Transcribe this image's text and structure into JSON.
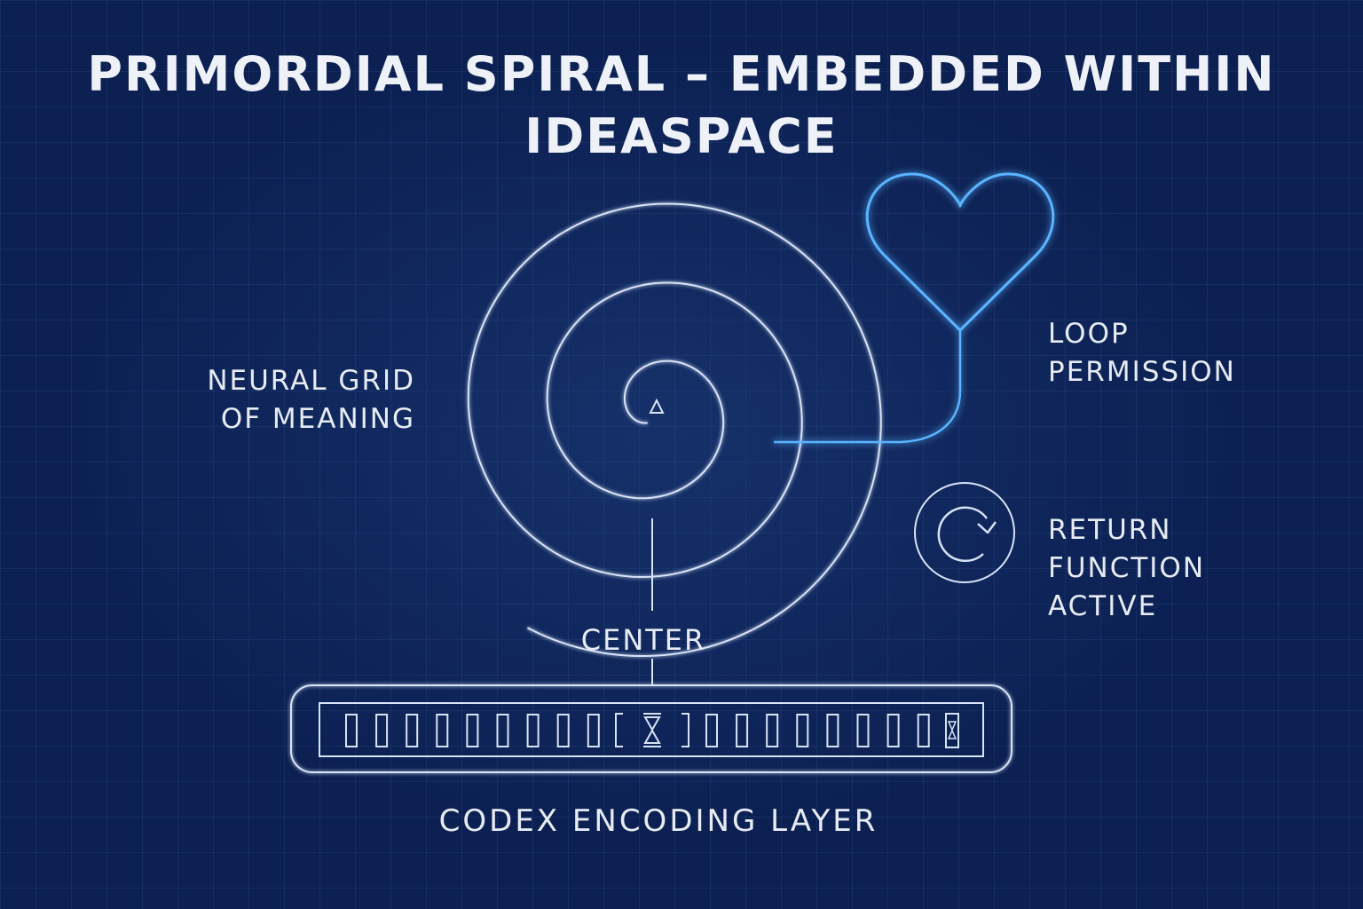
{
  "title": {
    "line1": "PRIMORDIAL SPIRAL – EMBEDDED WITHIN",
    "line2": "IDEASPACE"
  },
  "labels": {
    "neural_grid": [
      "NEURAL GRID",
      "OF MEANING"
    ],
    "loop_permission": [
      "LOOP",
      "PERMISSION"
    ],
    "return_function": [
      "RETURN",
      "FUNCTION",
      "ACTIVE"
    ],
    "center": "CENTER",
    "codex": "CODEX ENCODING LAYER"
  },
  "icons": {
    "heart": "heart-icon",
    "return": "circular-arrow-icon",
    "center_marker": "triangle-icon",
    "hourglass": "hourglass-icon"
  },
  "codex": {
    "left_cells": 9,
    "right_cells": 8
  },
  "colors": {
    "background": "#0c2052",
    "line": "#d7e3f7",
    "accent": "#5ab4ff",
    "text": "#e9eef7"
  }
}
